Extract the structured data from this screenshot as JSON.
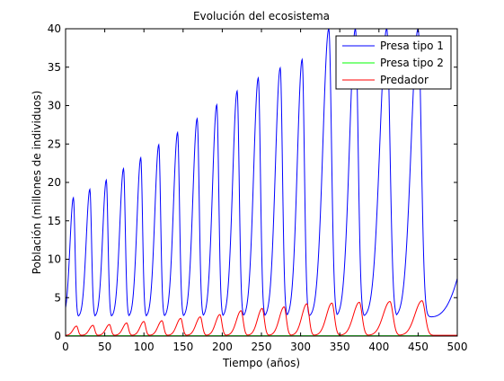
{
  "chart_data": {
    "type": "line",
    "title": "Evolución del ecosistema",
    "xlabel": "Tiempo (años)",
    "ylabel": "Población (millones de individuos)",
    "xlim": [
      0,
      500
    ],
    "ylim": [
      0,
      40
    ],
    "xticks": [
      "0",
      "50",
      "100",
      "150",
      "200",
      "250",
      "300",
      "350",
      "400",
      "450",
      "500"
    ],
    "yticks": [
      "0",
      "5",
      "10",
      "15",
      "20",
      "25",
      "30",
      "35",
      "40"
    ],
    "grid": false,
    "legend_position": "top-right",
    "legend": [
      "Presa tipo 1",
      "Presa tipo 2",
      "Predador"
    ],
    "series": [
      {
        "name": "Presa tipo 1",
        "color": "#0000ff",
        "baseline": 2.5,
        "peaks": [
          {
            "x": 10,
            "y": 18.0
          },
          {
            "x": 31,
            "y": 19.1
          },
          {
            "x": 52,
            "y": 20.3
          },
          {
            "x": 74,
            "y": 21.8
          },
          {
            "x": 96,
            "y": 23.2
          },
          {
            "x": 119,
            "y": 24.9
          },
          {
            "x": 143,
            "y": 26.5
          },
          {
            "x": 168,
            "y": 28.3
          },
          {
            "x": 193,
            "y": 30.1
          },
          {
            "x": 219,
            "y": 31.9
          },
          {
            "x": 246,
            "y": 33.6
          },
          {
            "x": 274,
            "y": 34.9
          },
          {
            "x": 302,
            "y": 36.0
          },
          {
            "x": 336,
            "y": 40.0
          },
          {
            "x": 370,
            "y": 40.0
          },
          {
            "x": 410,
            "y": 40.0
          },
          {
            "x": 450,
            "y": 40.0
          }
        ],
        "end_value": 7.5
      },
      {
        "name": "Presa tipo 2",
        "color": "#00ff00",
        "baseline": 0.05,
        "peaks": []
      },
      {
        "name": "Predador",
        "color": "#ff0000",
        "baseline": 0.1,
        "peaks": [
          {
            "x": 14,
            "y": 1.3
          },
          {
            "x": 35,
            "y": 1.4
          },
          {
            "x": 56,
            "y": 1.5
          },
          {
            "x": 78,
            "y": 1.7
          },
          {
            "x": 100,
            "y": 1.9
          },
          {
            "x": 123,
            "y": 2.0
          },
          {
            "x": 147,
            "y": 2.3
          },
          {
            "x": 172,
            "y": 2.5
          },
          {
            "x": 197,
            "y": 2.8
          },
          {
            "x": 224,
            "y": 3.3
          },
          {
            "x": 251,
            "y": 3.6
          },
          {
            "x": 279,
            "y": 3.8
          },
          {
            "x": 308,
            "y": 4.2
          },
          {
            "x": 340,
            "y": 4.3
          },
          {
            "x": 375,
            "y": 4.4
          },
          {
            "x": 414,
            "y": 4.5
          },
          {
            "x": 455,
            "y": 4.6
          }
        ]
      }
    ]
  }
}
